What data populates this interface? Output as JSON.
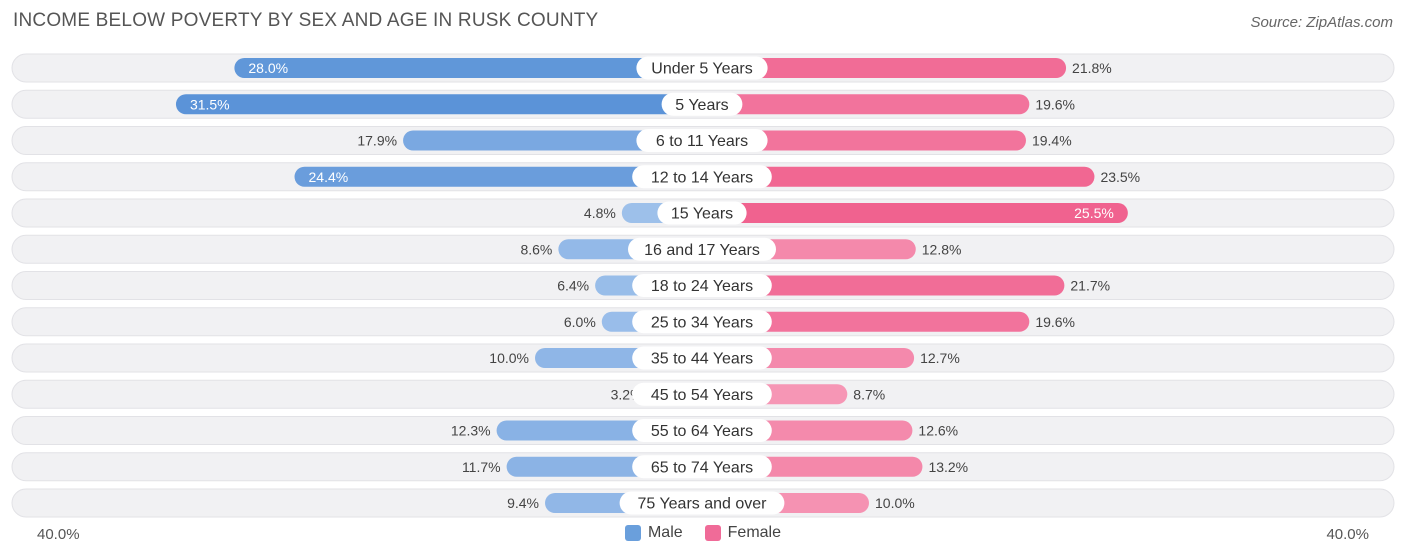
{
  "title": "INCOME BELOW POVERTY BY SEX AND AGE IN RUSK COUNTY",
  "source": "Source: ZipAtlas.com",
  "axis": {
    "left_label": "40.0%",
    "right_label": "40.0%"
  },
  "legend": [
    {
      "name": "Male",
      "color": "#6a9fdc"
    },
    {
      "name": "Female",
      "color": "#f06b98"
    }
  ],
  "chart_data": {
    "type": "bar",
    "orientation": "horizontal-diverging",
    "title": "INCOME BELOW POVERTY BY SEX AND AGE IN RUSK COUNTY",
    "xlim": [
      -40,
      40
    ],
    "unit": "%",
    "categories": [
      "Under 5 Years",
      "5 Years",
      "6 to 11 Years",
      "12 to 14 Years",
      "15 Years",
      "16 and 17 Years",
      "18 to 24 Years",
      "25 to 34 Years",
      "35 to 44 Years",
      "45 to 54 Years",
      "55 to 64 Years",
      "65 to 74 Years",
      "75 Years and over"
    ],
    "series": [
      {
        "name": "Male",
        "values": [
          28.0,
          31.5,
          17.9,
          24.4,
          4.8,
          8.6,
          6.4,
          6.0,
          10.0,
          3.2,
          12.3,
          11.7,
          9.4
        ],
        "labels": [
          "28.0%",
          "31.5%",
          "17.9%",
          "24.4%",
          "4.8%",
          "8.6%",
          "6.4%",
          "6.0%",
          "10.0%",
          "3.2%",
          "12.3%",
          "11.7%",
          "9.4%"
        ]
      },
      {
        "name": "Female",
        "values": [
          21.8,
          19.6,
          19.4,
          23.5,
          25.5,
          12.8,
          21.7,
          19.6,
          12.7,
          8.7,
          12.6,
          13.2,
          10.0
        ],
        "labels": [
          "21.8%",
          "19.6%",
          "19.4%",
          "23.5%",
          "25.5%",
          "12.8%",
          "21.7%",
          "19.6%",
          "12.7%",
          "8.7%",
          "12.6%",
          "13.2%",
          "10.0%"
        ]
      }
    ],
    "legend_position": "bottom-center",
    "grid": false
  }
}
